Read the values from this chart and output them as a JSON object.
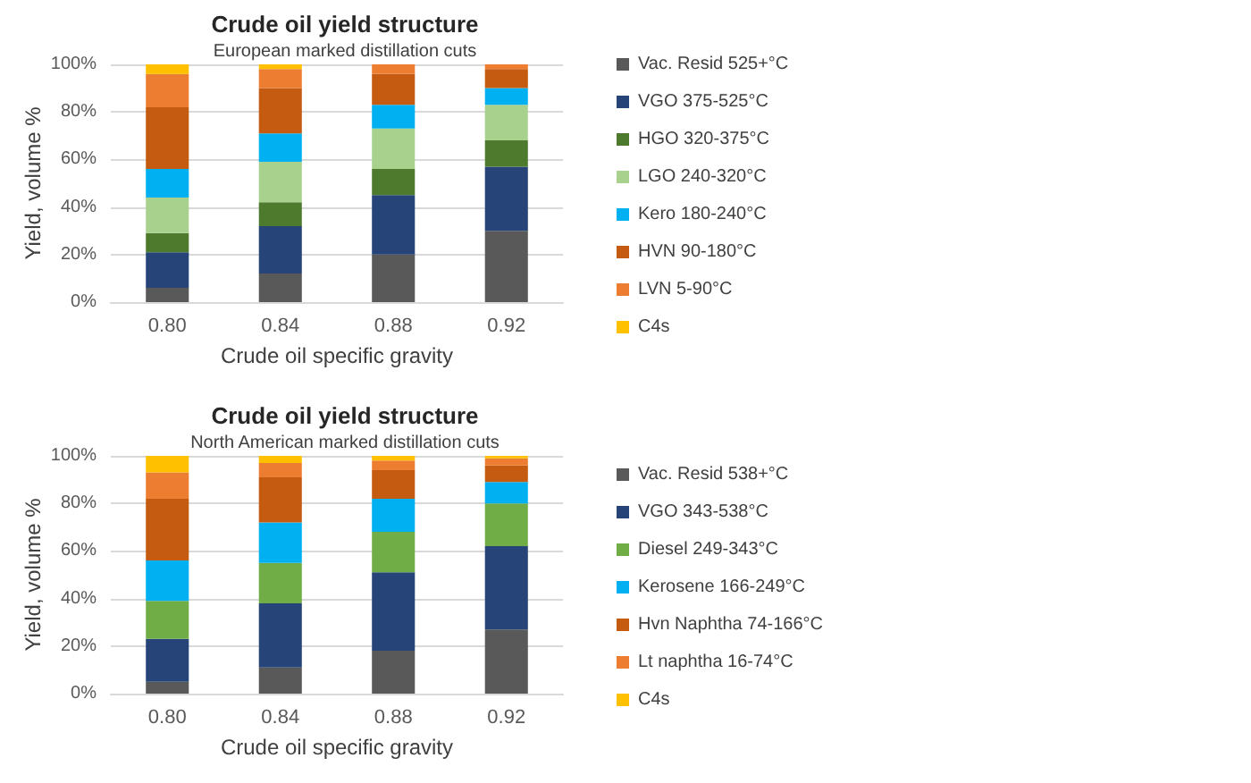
{
  "chart_data": [
    {
      "type": "bar",
      "stacked": true,
      "title": "Crude oil yield structure",
      "subtitle": "European marked distillation cuts",
      "xlabel": "Crude oil specific gravity",
      "ylabel": "Yield, volume %",
      "categories": [
        "0.80",
        "0.84",
        "0.88",
        "0.92"
      ],
      "ylim": [
        0,
        100
      ],
      "yticks": [
        {
          "value": 0,
          "label": "0%"
        },
        {
          "value": 20,
          "label": "20%"
        },
        {
          "value": 40,
          "label": "40%"
        },
        {
          "value": 60,
          "label": "60%"
        },
        {
          "value": 80,
          "label": "80%"
        },
        {
          "value": 100,
          "label": "100%"
        }
      ],
      "grid": "y",
      "legend": "right",
      "series": [
        {
          "name": "Vac. Resid 525+°C",
          "color": "#595959",
          "values": [
            6,
            12,
            20,
            30
          ]
        },
        {
          "name": "VGO 375-525°C",
          "color": "#264478",
          "values": [
            15,
            20,
            25,
            27
          ]
        },
        {
          "name": "HGO 320-375°C",
          "color": "#4e7a2e",
          "values": [
            8,
            10,
            11,
            11
          ]
        },
        {
          "name": "LGO 240-320°C",
          "color": "#a9d18e",
          "values": [
            15,
            17,
            17,
            15
          ]
        },
        {
          "name": "Kero 180-240°C",
          "color": "#00b0f0",
          "values": [
            12,
            12,
            10,
            7
          ]
        },
        {
          "name": "HVN 90-180°C",
          "color": "#c55a11",
          "values": [
            26,
            19,
            13,
            8
          ]
        },
        {
          "name": "LVN 5-90°C",
          "color": "#ed7d31",
          "values": [
            14,
            8,
            4,
            2
          ]
        },
        {
          "name": "C4s",
          "color": "#ffc000",
          "values": [
            4,
            2,
            0,
            0
          ]
        }
      ]
    },
    {
      "type": "bar",
      "stacked": true,
      "title": "Crude oil yield structure",
      "subtitle": "North American marked distillation cuts",
      "xlabel": "Crude oil specific gravity",
      "ylabel": "Yield, volume %",
      "categories": [
        "0.80",
        "0.84",
        "0.88",
        "0.92"
      ],
      "ylim": [
        0,
        100
      ],
      "yticks": [
        {
          "value": 0,
          "label": "0%"
        },
        {
          "value": 20,
          "label": "20%"
        },
        {
          "value": 40,
          "label": "40%"
        },
        {
          "value": 60,
          "label": "60%"
        },
        {
          "value": 80,
          "label": "80%"
        },
        {
          "value": 100,
          "label": "100%"
        }
      ],
      "grid": "y",
      "legend": "right",
      "series": [
        {
          "name": "Vac. Resid 538+°C",
          "color": "#595959",
          "values": [
            5,
            11,
            18,
            27
          ]
        },
        {
          "name": "VGO 343-538°C",
          "color": "#264478",
          "values": [
            18,
            27,
            33,
            35
          ]
        },
        {
          "name": "Diesel 249-343°C",
          "color": "#70ad47",
          "values": [
            16,
            17,
            17,
            18
          ]
        },
        {
          "name": "Kerosene 166-249°C",
          "color": "#00b0f0",
          "values": [
            17,
            17,
            14,
            9
          ]
        },
        {
          "name": "Hvn Naphtha 74-166°C",
          "color": "#c55a11",
          "values": [
            26,
            19,
            12,
            7
          ]
        },
        {
          "name": "Lt naphtha 16-74°C",
          "color": "#ed7d31",
          "values": [
            11,
            6,
            4,
            3
          ]
        },
        {
          "name": "C4s",
          "color": "#ffc000",
          "values": [
            7,
            3,
            2,
            1
          ]
        }
      ]
    }
  ]
}
